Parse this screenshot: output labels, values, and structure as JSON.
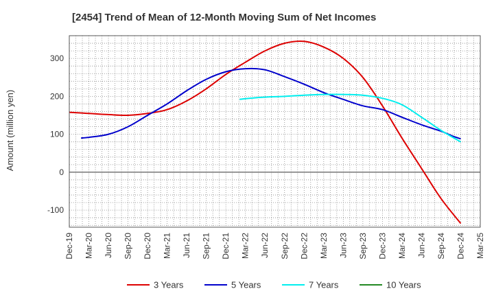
{
  "chart_data": {
    "type": "line",
    "title": "[2454]  Trend of Mean of 12-Month Moving Sum of Net Incomes",
    "ylabel": "Amount (million yen)",
    "xlabel": "",
    "ylim": [
      -145,
      360
    ],
    "yticks": [
      -100,
      0,
      100,
      200,
      300
    ],
    "xtick_labels": [
      "Dec-19",
      "Mar-20",
      "Jun-20",
      "Sep-20",
      "Dec-20",
      "Mar-21",
      "Jun-21",
      "Sep-21",
      "Dec-21",
      "Mar-22",
      "Jun-22",
      "Sep-22",
      "Dec-22",
      "Mar-23",
      "Jun-23",
      "Sep-23",
      "Dec-23",
      "Mar-24",
      "Jun-24",
      "Sep-24",
      "Dec-24",
      "Mar-25"
    ],
    "grid": true,
    "legend_position": "bottom",
    "series": [
      {
        "name": "3 Years",
        "color": "#dd0000",
        "start_index": 0,
        "values": [
          158,
          155,
          152,
          150,
          155,
          165,
          188,
          220,
          258,
          290,
          320,
          340,
          345,
          330,
          300,
          250,
          175,
          90,
          10,
          -70,
          -135
        ]
      },
      {
        "name": "5 Years",
        "color": "#0000cc",
        "start_index": 0.6,
        "values_at": [
          [
            0.6,
            90
          ],
          [
            1,
            92
          ],
          [
            2,
            100
          ],
          [
            3,
            120
          ],
          [
            4,
            150
          ],
          [
            5,
            180
          ],
          [
            6,
            215
          ],
          [
            7,
            245
          ],
          [
            8,
            265
          ],
          [
            9,
            273
          ],
          [
            10,
            270
          ],
          [
            11,
            252
          ],
          [
            12,
            232
          ],
          [
            13,
            210
          ],
          [
            14,
            192
          ],
          [
            15,
            175
          ],
          [
            16,
            165
          ],
          [
            17,
            145
          ],
          [
            18,
            125
          ],
          [
            19,
            108
          ],
          [
            19.6,
            95
          ],
          [
            20,
            88
          ]
        ]
      },
      {
        "name": "7 Years",
        "color": "#00eeee",
        "start_index": 8.7,
        "values_at": [
          [
            8.7,
            192
          ],
          [
            9,
            194
          ],
          [
            10,
            198
          ],
          [
            11,
            200
          ],
          [
            12,
            203
          ],
          [
            13,
            205
          ],
          [
            14,
            205
          ],
          [
            15,
            203
          ],
          [
            16,
            195
          ],
          [
            17,
            178
          ],
          [
            18,
            145
          ],
          [
            19,
            110
          ],
          [
            20,
            80
          ]
        ]
      },
      {
        "name": "10 Years",
        "color": "#228822",
        "values_at": []
      }
    ]
  }
}
